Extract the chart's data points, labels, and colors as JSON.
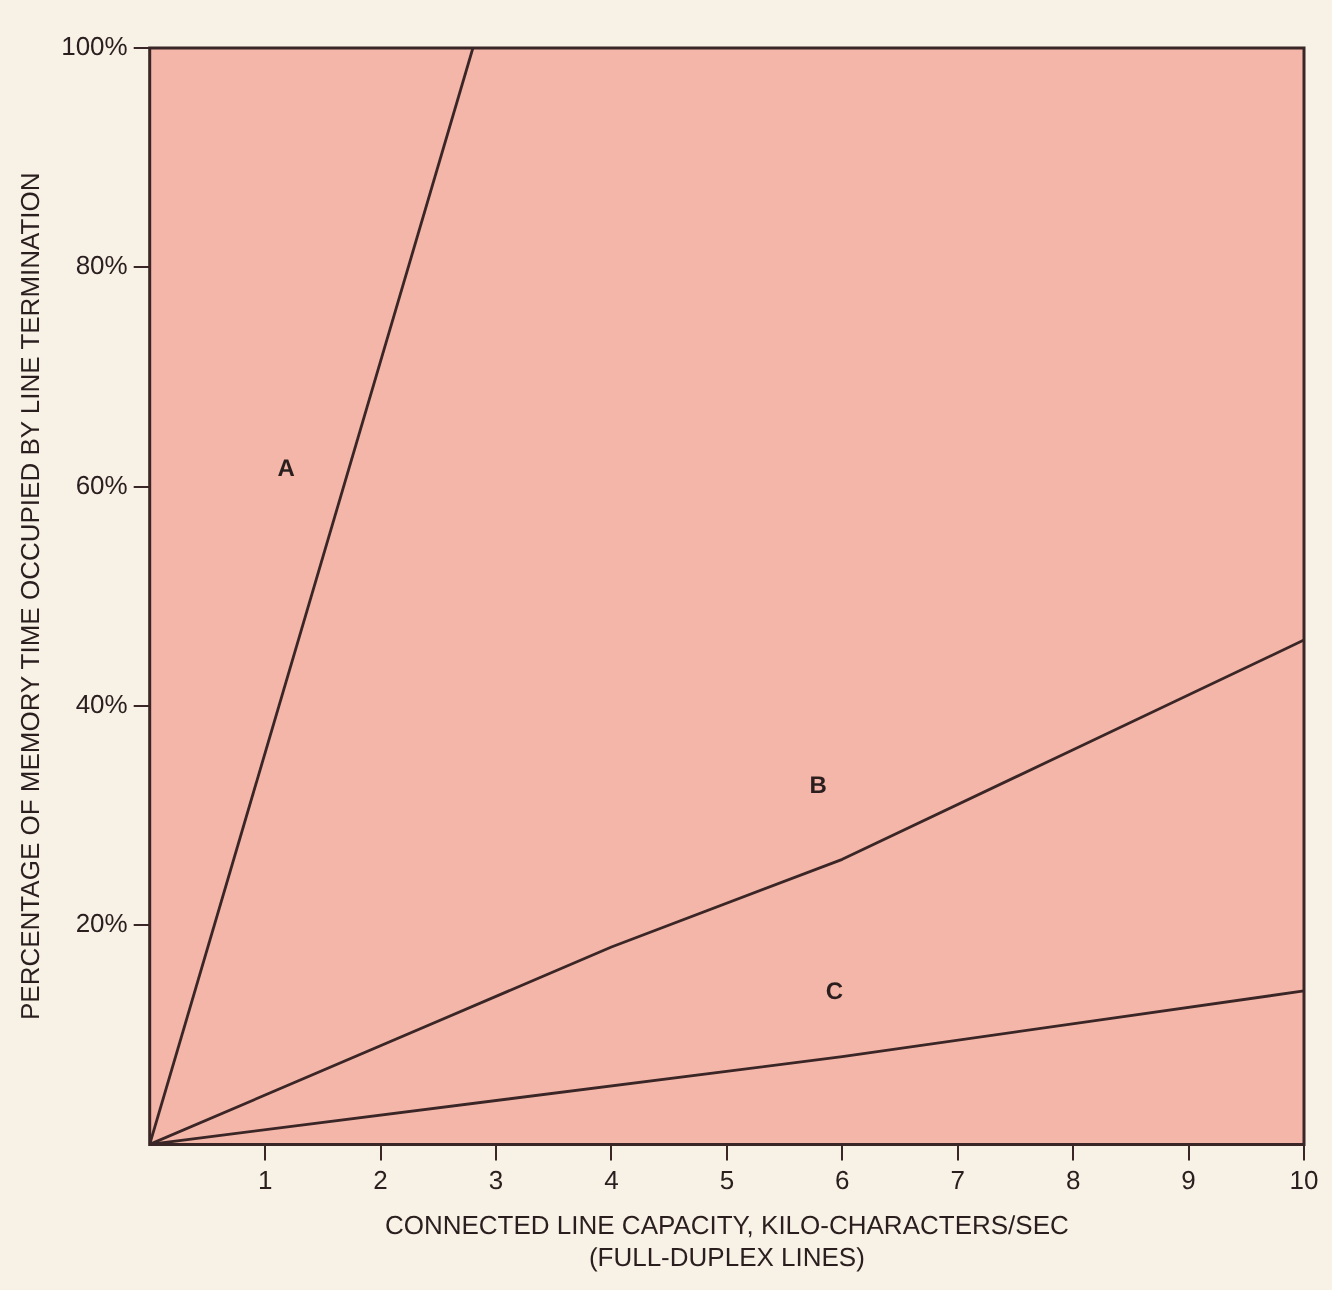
{
  "chart_data": {
    "type": "line",
    "xlabel": "CONNECTED LINE CAPACITY, KILO-CHARACTERS/SEC\n(FULL-DUPLEX LINES)",
    "ylabel": "PERCENTAGE OF MEMORY TIME OCCUPIED BY LINE TERMINATION",
    "series": [
      {
        "name": "A",
        "color": "#3a2626",
        "x": [
          0,
          2.8
        ],
        "values": [
          0,
          100
        ]
      },
      {
        "name": "B",
        "color": "#3a2626",
        "x": [
          0,
          4,
          6,
          8,
          10
        ],
        "values": [
          0,
          18,
          26,
          36,
          46
        ]
      },
      {
        "name": "C",
        "color": "#3a2626",
        "x": [
          0,
          6,
          10
        ],
        "values": [
          0,
          8,
          14
        ]
      }
    ],
    "xlim": [
      0,
      10
    ],
    "xticks": [
      1,
      2,
      3,
      4,
      5,
      6,
      7,
      8,
      9,
      10
    ],
    "ylim": [
      0,
      100
    ],
    "yticks": [
      {
        "value": 20,
        "label": "20%"
      },
      {
        "value": 40,
        "label": "40%"
      },
      {
        "value": 60,
        "label": "60%"
      },
      {
        "value": 80,
        "label": "80%"
      },
      {
        "value": 100,
        "label": "100%"
      }
    ],
    "grid": false,
    "legend": false,
    "marker": "none",
    "line_style": "solid"
  }
}
